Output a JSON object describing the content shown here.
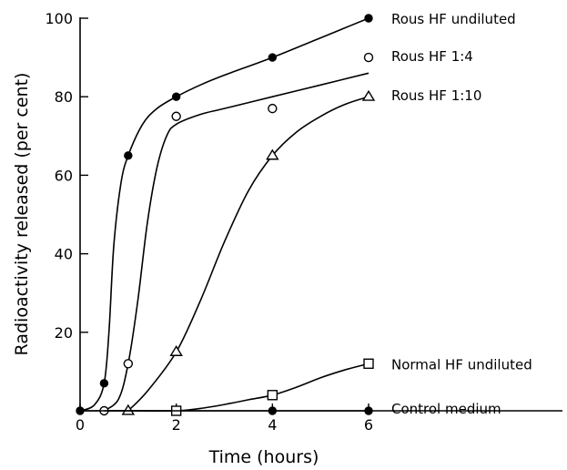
{
  "chart_data": {
    "type": "line",
    "title": "",
    "xlabel": "Time (hours)",
    "ylabel": "Radioactivity released (per cent)",
    "xlim": [
      0,
      6
    ],
    "ylim": [
      0,
      100
    ],
    "x_ticks": [
      0,
      2,
      4,
      6
    ],
    "x_tick_labels": [
      "0",
      "2",
      "4",
      "6"
    ],
    "y_ticks": [
      20,
      40,
      60,
      80,
      100
    ],
    "y_tick_labels": [
      "20",
      "40",
      "60",
      "80",
      "100"
    ],
    "grid": false,
    "legend": "direct labels at right end of each series",
    "series": [
      {
        "name": "Rous HF undiluted",
        "marker": "filled-circle",
        "points": [
          [
            0,
            0
          ],
          [
            0.5,
            7
          ],
          [
            1,
            65
          ],
          [
            2,
            80
          ],
          [
            4,
            90
          ],
          [
            6,
            100
          ]
        ],
        "curve": [
          [
            0,
            0
          ],
          [
            0.3,
            1.5
          ],
          [
            0.5,
            7
          ],
          [
            0.6,
            20
          ],
          [
            0.7,
            42
          ],
          [
            0.85,
            58
          ],
          [
            1,
            65
          ],
          [
            1.3,
            73
          ],
          [
            1.6,
            77
          ],
          [
            2,
            80
          ],
          [
            2.5,
            83
          ],
          [
            3,
            85.5
          ],
          [
            4,
            90
          ],
          [
            5,
            95
          ],
          [
            6,
            100
          ]
        ]
      },
      {
        "name": "Rous HF 1:4",
        "marker": "open-circle",
        "points": [
          [
            0.5,
            0
          ],
          [
            1,
            12
          ],
          [
            2,
            75
          ],
          [
            4,
            77
          ],
          [
            6,
            90
          ]
        ],
        "curve": [
          [
            0.5,
            0
          ],
          [
            0.8,
            3
          ],
          [
            1,
            12
          ],
          [
            1.2,
            28
          ],
          [
            1.4,
            48
          ],
          [
            1.6,
            62
          ],
          [
            1.8,
            70
          ],
          [
            2,
            73
          ],
          [
            2.5,
            75.5
          ],
          [
            3,
            77
          ],
          [
            4,
            80
          ],
          [
            5,
            83
          ],
          [
            6,
            86
          ]
        ]
      },
      {
        "name": "Rous HF 1:10",
        "marker": "open-triangle",
        "points": [
          [
            1,
            0
          ],
          [
            2,
            15
          ],
          [
            4,
            65
          ],
          [
            6,
            80
          ]
        ],
        "curve": [
          [
            1,
            0
          ],
          [
            1.4,
            5
          ],
          [
            2,
            15
          ],
          [
            2.5,
            28
          ],
          [
            3,
            43
          ],
          [
            3.5,
            56
          ],
          [
            4,
            65
          ],
          [
            4.5,
            71
          ],
          [
            5,
            75
          ],
          [
            5.5,
            78
          ],
          [
            6,
            80
          ]
        ]
      },
      {
        "name": "Normal HF undiluted",
        "marker": "open-square",
        "points": [
          [
            2,
            0
          ],
          [
            4,
            4
          ],
          [
            6,
            12
          ]
        ],
        "curve": [
          [
            0.5,
            0
          ],
          [
            1,
            0
          ],
          [
            2,
            0
          ],
          [
            2.5,
            0.6
          ],
          [
            3,
            1.6
          ],
          [
            3.5,
            2.8
          ],
          [
            4,
            4
          ],
          [
            4.5,
            6
          ],
          [
            5,
            8.4
          ],
          [
            5.5,
            10.4
          ],
          [
            6,
            12
          ]
        ]
      },
      {
        "name": "Control medium",
        "marker": "filled-circle",
        "points": [
          [
            4,
            0
          ],
          [
            6,
            0
          ]
        ],
        "curve": [
          [
            0,
            0
          ],
          [
            6,
            0
          ]
        ]
      }
    ]
  }
}
